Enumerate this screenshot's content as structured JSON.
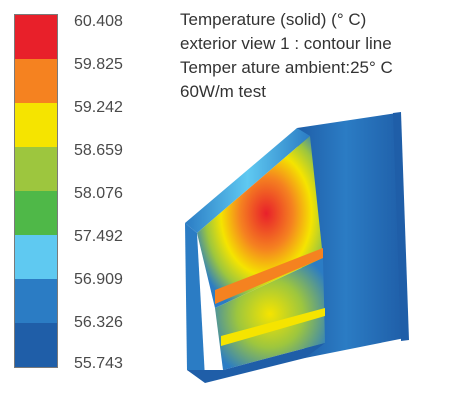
{
  "caption": {
    "line1": "Temperature (solid) (° C)",
    "line2": "exterior view 1 : contour line",
    "line3": "Temper ature ambient:25° C",
    "line4": "60W/m test"
  },
  "legend": {
    "ticks": [
      "60.408",
      "59.825",
      "59.242",
      "58.659",
      "58.076",
      "57.492",
      "56.909",
      "56.326",
      "55.743"
    ],
    "colors": [
      "#e8202a",
      "#f58220",
      "#f5e400",
      "#9dc63e",
      "#4fb848",
      "#5fc9f1",
      "#2b7cc4",
      "#1f5ea8"
    ]
  }
}
